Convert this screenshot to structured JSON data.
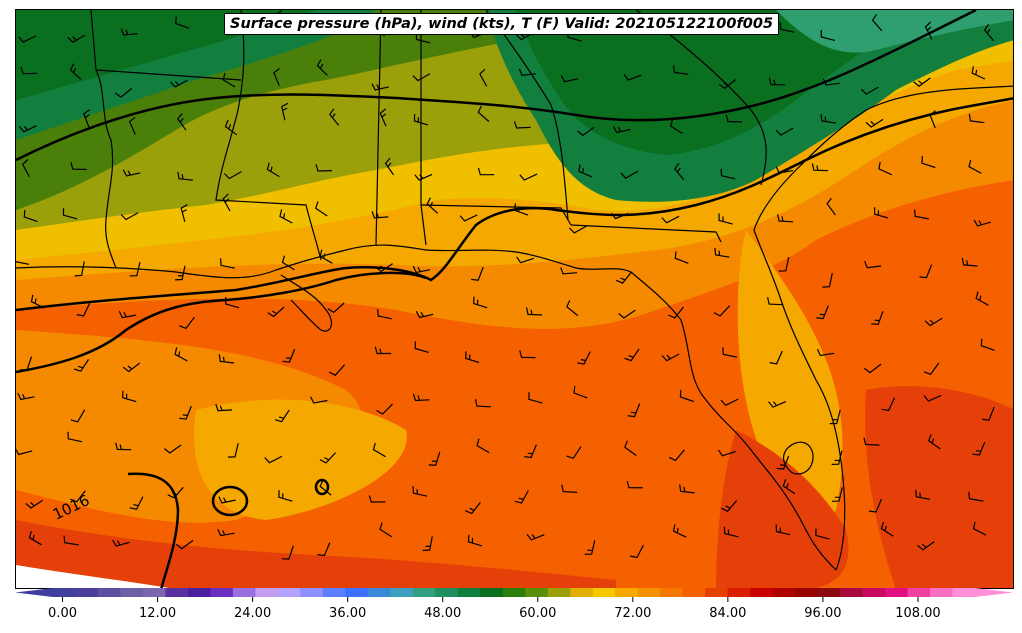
{
  "title": "Surface pressure (hPa), wind (kts), T (F) Valid: 202105122100f005",
  "contour_labels": [
    "1016"
  ],
  "colorbar": {
    "tick_labels": [
      "0.00",
      "12.00",
      "24.00",
      "36.00",
      "48.00",
      "60.00",
      "72.00",
      "84.00",
      "96.00",
      "108.00"
    ],
    "tick_values": [
      0,
      12,
      24,
      36,
      48,
      60,
      72,
      84,
      96,
      108
    ],
    "range": [
      -6,
      120
    ],
    "colors": [
      "#3f3f9f",
      "#4a3f99",
      "#5c4f9f",
      "#6e5fa6",
      "#7a67ad",
      "#5a2fa0",
      "#4a1fa0",
      "#6a2fc0",
      "#9a6fe0",
      "#c49cf0",
      "#b3a3ff",
      "#8f8fff",
      "#5c7fff",
      "#3f6fff",
      "#3a88d8",
      "#3f9fbf",
      "#2f9f7f",
      "#1f8f5f",
      "#127f3f",
      "#0a6f1f",
      "#2a7f0a",
      "#5a8f0a",
      "#9a9f0a",
      "#e0b000",
      "#f5c800",
      "#f5a800",
      "#f59000",
      "#f57800",
      "#f56000",
      "#e54000",
      "#d82000",
      "#c80000",
      "#b00000",
      "#980000",
      "#8a0a10",
      "#a80a40",
      "#c80a60",
      "#e01080",
      "#f040a0",
      "#f870c0",
      "#ff90d8"
    ]
  },
  "fill_colors": {
    "dark_green": "#0a6f1f",
    "mid_green": "#127f3f",
    "teal_green": "#2f9f6f",
    "olive_green": "#4a7f0a",
    "olive": "#9a9f0a",
    "yellow": "#f0c000",
    "amber": "#f5a800",
    "orange": "#f58a00",
    "orange_red": "#f56000",
    "red_orange": "#e5400a"
  }
}
